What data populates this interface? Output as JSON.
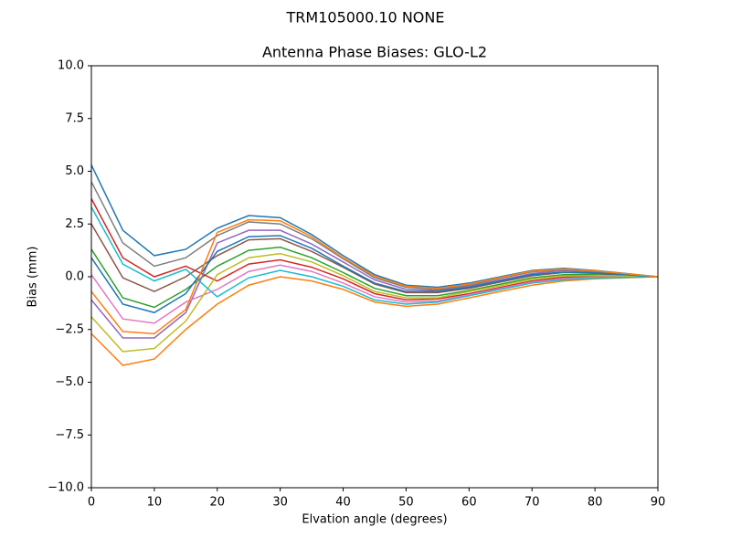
{
  "chart_data": {
    "type": "line",
    "suptitle": "TRM105000.10    NONE",
    "title": "Antenna Phase Biases: GLO-L2",
    "xlabel": "Elvation angle (degrees)",
    "ylabel": "Bias (mm)",
    "x": [
      0,
      5,
      10,
      15,
      20,
      25,
      30,
      35,
      40,
      45,
      50,
      55,
      60,
      65,
      70,
      75,
      80,
      85,
      90
    ],
    "xlim": [
      0,
      90
    ],
    "xticks": [
      0,
      10,
      20,
      30,
      40,
      50,
      60,
      70,
      80,
      90
    ],
    "ylim": [
      -10,
      10
    ],
    "yticks": [
      {
        "value": -10,
        "label": "−10.0"
      },
      {
        "value": -7.5,
        "label": "−7.5"
      },
      {
        "value": -5,
        "label": "−5.0"
      },
      {
        "value": -2.5,
        "label": "−2.5"
      },
      {
        "value": 0,
        "label": "0.0"
      },
      2.5,
      {
        "value": 5,
        "label": "5.0"
      },
      7.5,
      {
        "value": 10,
        "label": "10.0"
      }
    ],
    "grid": false,
    "series": [
      {
        "color": "#1f77b4",
        "values": [
          5.3,
          2.2,
          1.0,
          1.3,
          2.3,
          2.9,
          2.8,
          2.0,
          1.0,
          0.1,
          -0.4,
          -0.5,
          -0.3,
          0.0,
          0.3,
          0.4,
          0.3,
          0.15,
          0
        ]
      },
      {
        "color": "#ff7f0e",
        "values": [
          -2.7,
          -4.2,
          -3.9,
          -2.5,
          -1.3,
          -0.4,
          0.0,
          -0.2,
          -0.6,
          -1.2,
          -1.4,
          -1.3,
          -1.0,
          -0.7,
          -0.4,
          -0.2,
          -0.1,
          -0.05,
          0
        ]
      },
      {
        "color": "#2ca02c",
        "values": [
          1.3,
          -1.0,
          -1.45,
          -0.6,
          0.5,
          1.25,
          1.4,
          0.9,
          0.2,
          -0.55,
          -0.9,
          -0.9,
          -0.65,
          -0.35,
          -0.05,
          0.1,
          0.1,
          0.05,
          0
        ]
      },
      {
        "color": "#d62728",
        "values": [
          3.7,
          0.9,
          0.0,
          0.5,
          -0.2,
          0.6,
          0.8,
          0.45,
          -0.1,
          -0.8,
          -1.1,
          -1.05,
          -0.8,
          -0.5,
          -0.2,
          -0.02,
          0.02,
          0.01,
          0
        ]
      },
      {
        "color": "#9467bd",
        "values": [
          -1.1,
          -2.9,
          -2.9,
          -1.7,
          1.6,
          2.2,
          2.2,
          1.55,
          0.7,
          -0.15,
          -0.6,
          -0.65,
          -0.45,
          -0.15,
          0.15,
          0.3,
          0.22,
          0.11,
          0
        ]
      },
      {
        "color": "#8c564b",
        "values": [
          2.5,
          -0.05,
          -0.7,
          0.0,
          1.0,
          1.75,
          1.8,
          1.2,
          0.45,
          -0.35,
          -0.75,
          -0.75,
          -0.55,
          -0.25,
          0.05,
          0.2,
          0.16,
          0.08,
          0
        ]
      },
      {
        "color": "#e377c2",
        "values": [
          0.1,
          -2.0,
          -2.2,
          -1.2,
          -0.6,
          0.25,
          0.55,
          0.25,
          -0.3,
          -0.95,
          -1.2,
          -1.15,
          -0.85,
          -0.55,
          -0.25,
          -0.08,
          -0.02,
          -0.01,
          0
        ]
      },
      {
        "color": "#7f7f7f",
        "values": [
          4.5,
          1.6,
          0.5,
          0.9,
          1.95,
          2.6,
          2.5,
          1.8,
          0.85,
          -0.05,
          -0.5,
          -0.6,
          -0.4,
          -0.07,
          0.23,
          0.34,
          0.26,
          0.13,
          0
        ]
      },
      {
        "color": "#bcbd22",
        "values": [
          -1.9,
          -3.55,
          -3.4,
          -2.1,
          0.1,
          0.9,
          1.1,
          0.7,
          0.05,
          -0.7,
          -1.0,
          -1.0,
          -0.7,
          -0.42,
          -0.12,
          0.04,
          0.06,
          0.03,
          0
        ]
      },
      {
        "color": "#17becf",
        "values": [
          3.3,
          0.6,
          -0.2,
          0.35,
          -0.95,
          -0.05,
          0.3,
          0.0,
          -0.45,
          -1.1,
          -1.3,
          -1.2,
          -0.9,
          -0.6,
          -0.3,
          -0.14,
          -0.06,
          -0.03,
          0
        ]
      },
      {
        "color": "#1f77b4",
        "values": [
          0.9,
          -1.3,
          -1.7,
          -0.8,
          1.2,
          1.9,
          1.95,
          1.35,
          0.5,
          -0.3,
          -0.7,
          -0.7,
          -0.5,
          -0.2,
          0.1,
          0.22,
          0.18,
          0.09,
          0
        ]
      },
      {
        "color": "#ff7f0e",
        "values": [
          -0.7,
          -2.6,
          -2.7,
          -1.55,
          2.1,
          2.7,
          2.65,
          1.9,
          0.9,
          0.03,
          -0.45,
          -0.55,
          -0.35,
          -0.03,
          0.27,
          0.37,
          0.28,
          0.14,
          0
        ]
      }
    ]
  }
}
